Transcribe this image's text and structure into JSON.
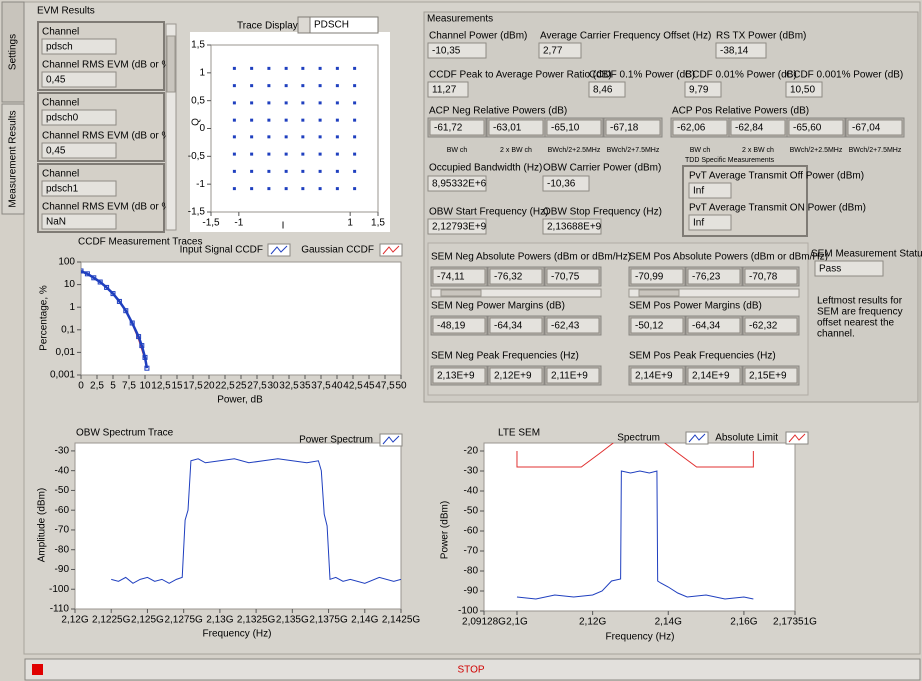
{
  "tabs": [
    "Settings",
    "Measurement Results"
  ],
  "evm": {
    "title": "EVM Results",
    "items": [
      {
        "channel_label": "Channel",
        "channel": "pdsch",
        "evm_label": "Channel RMS EVM (dB or %)",
        "evm": "0,45"
      },
      {
        "channel_label": "Channel",
        "channel": "pdsch0",
        "evm_label": "Channel RMS EVM (dB or %)",
        "evm": "0,45"
      },
      {
        "channel_label": "Channel",
        "channel": "pdsch1",
        "evm_label": "Channel RMS EVM (dB or %)",
        "evm": "NaN"
      }
    ]
  },
  "measurements": {
    "title": "Measurements",
    "fields": [
      {
        "label": "Channel Power (dBm)",
        "value": "-10,35"
      },
      {
        "label": "Average Carrier Frequency Offset (Hz)",
        "value": "2,77"
      },
      {
        "label": "RS TX Power (dBm)",
        "value": "-38,14"
      },
      {
        "label": "CCDF Peak to Average Power Ratio (dB)",
        "value": "11,27"
      },
      {
        "label": "CCDF 0.1% Power (dB)",
        "value": "8,46"
      },
      {
        "label": "CCDF 0.01% Power (dB)",
        "value": "9,79"
      },
      {
        "label": "CCDF 0.001% Power (dB)",
        "value": "10,50"
      },
      {
        "label": "Occupied Bandwidth (Hz)",
        "value": "8,95332E+6"
      },
      {
        "label": "OBW Carrier Power (dBm)",
        "value": "-10,36"
      },
      {
        "label": "OBW Start Frequency (Hz)",
        "value": "2,12793E+9"
      },
      {
        "label": "OBW Stop Frequency (Hz)",
        "value": "2,13688E+9"
      }
    ],
    "acp_neg": {
      "label": "ACP Neg Relative Powers (dB)",
      "values": [
        "-61,72",
        "-63,01",
        "-65,10",
        "-67,18"
      ],
      "sublabels": [
        "BW ch",
        "2 x BW ch",
        "BWch/2+2.5MHz",
        "BWch/2+7.5MHz"
      ]
    },
    "acp_pos": {
      "label": "ACP Pos Relative Powers (dB)",
      "values": [
        "-62,06",
        "-62,84",
        "-65,60",
        "-67,04"
      ],
      "sublabels": [
        "BW ch",
        "2 x BW ch",
        "BWch/2+2.5MHz",
        "BWch/2+7.5MHz"
      ]
    },
    "tdd": {
      "title": "TDD Specific Measurements",
      "fields": [
        {
          "label": "PvT Average Transmit Off Power (dBm)",
          "value": "Inf"
        },
        {
          "label": "PvT Average Transmit ON Power (dBm)",
          "value": "Inf"
        }
      ]
    },
    "sem_arrays": [
      {
        "label": "SEM Neg Absolute Powers (dBm or dBm/Hz)",
        "values": [
          "-74,11",
          "-76,32",
          "-70,75"
        ]
      },
      {
        "label": "SEM Pos Absolute Powers (dBm or dBm/Hz)",
        "values": [
          "-70,99",
          "-76,23",
          "-70,78"
        ]
      },
      {
        "label": "SEM Neg Power Margins (dB)",
        "values": [
          "-48,19",
          "-64,34",
          "-62,43"
        ]
      },
      {
        "label": "SEM Pos Power Margins (dB)",
        "values": [
          "-50,12",
          "-64,34",
          "-62,32"
        ]
      },
      {
        "label": "SEM Neg Peak Frequencies (Hz)",
        "values": [
          "2,13E+9",
          "2,12E+9",
          "2,11E+9"
        ]
      },
      {
        "label": "SEM Pos Peak Frequencies (Hz)",
        "values": [
          "2,14E+9",
          "2,14E+9",
          "2,15E+9"
        ]
      }
    ],
    "sem_status": {
      "label": "SEM Measurement Status",
      "value": "Pass"
    },
    "sem_note": [
      "Leftmost results for",
      "SEM are frequency",
      "offset nearest the",
      "channel."
    ]
  },
  "stop_button": "STOP",
  "chart_data": [
    {
      "type": "scatter",
      "selector_label": "Trace Display",
      "selector_value": "PDSCH",
      "xlabel": "I",
      "ylabel": "Q",
      "xlim": [
        -1.5,
        1.5
      ],
      "ylim": [
        -1.5,
        1.5
      ],
      "grid": false,
      "color": "#1f3fbf",
      "xticks": [
        {
          "value": -1.5,
          "label": "-1,5"
        },
        -1,
        1,
        {
          "value": 1.5,
          "label": "1,5"
        }
      ],
      "yticks": [
        {
          "value": 1.5,
          "label": "1,5"
        },
        1,
        {
          "value": 0.5,
          "label": "0,5"
        },
        0,
        {
          "value": -0.5,
          "label": "-0,5"
        },
        -1,
        {
          "value": -1.5,
          "label": "-1,5"
        }
      ],
      "x": [
        -1.08,
        -0.77,
        -0.46,
        -0.15,
        0.15,
        0.46,
        0.77,
        1.08,
        -1.08,
        -0.77,
        -0.46,
        -0.15,
        0.15,
        0.46,
        0.77,
        1.08,
        -1.08,
        -0.77,
        -0.46,
        -0.15,
        0.15,
        0.46,
        0.77,
        1.08,
        -1.08,
        -0.77,
        -0.46,
        -0.15,
        0.15,
        0.46,
        0.77,
        1.08,
        -1.08,
        -0.77,
        -0.46,
        -0.15,
        0.15,
        0.46,
        0.77,
        1.08,
        -1.08,
        -0.77,
        -0.46,
        -0.15,
        0.15,
        0.46,
        0.77,
        1.08,
        -1.08,
        -0.77,
        -0.46,
        -0.15,
        0.15,
        0.46,
        0.77,
        1.08,
        -1.08,
        -0.77,
        -0.46,
        -0.15,
        0.15,
        0.46,
        0.77,
        1.08
      ],
      "values": [
        1.08,
        1.08,
        1.08,
        1.08,
        1.08,
        1.08,
        1.08,
        1.08,
        0.77,
        0.77,
        0.77,
        0.77,
        0.77,
        0.77,
        0.77,
        0.77,
        0.46,
        0.46,
        0.46,
        0.46,
        0.46,
        0.46,
        0.46,
        0.46,
        0.15,
        0.15,
        0.15,
        0.15,
        0.15,
        0.15,
        0.15,
        0.15,
        -0.15,
        -0.15,
        -0.15,
        -0.15,
        -0.15,
        -0.15,
        -0.15,
        -0.15,
        -0.46,
        -0.46,
        -0.46,
        -0.46,
        -0.46,
        -0.46,
        -0.46,
        -0.46,
        -0.77,
        -0.77,
        -0.77,
        -0.77,
        -0.77,
        -0.77,
        -0.77,
        -0.77,
        -1.08,
        -1.08,
        -1.08,
        -1.08,
        -1.08,
        -1.08,
        -1.08,
        -1.08
      ]
    },
    {
      "type": "line",
      "title": "CCDF Measurement Traces",
      "xlabel": "Power, dB",
      "ylabel": "Percentage, %",
      "log_y": true,
      "grid": false,
      "xlim": [
        0,
        50
      ],
      "ylim": [
        0.001,
        100
      ],
      "xticks": [
        0,
        {
          "value": 2.5,
          "label": "2,5"
        },
        5,
        {
          "value": 7.5,
          "label": "7,5"
        },
        10,
        {
          "value": 12.5,
          "label": "12,5"
        },
        15,
        {
          "value": 17.5,
          "label": "17,5"
        },
        20,
        {
          "value": 22.5,
          "label": "22,5"
        },
        25,
        {
          "value": 27.5,
          "label": "27,5"
        },
        30,
        {
          "value": 32.5,
          "label": "32,5"
        },
        35,
        {
          "value": 37.5,
          "label": "37,5"
        },
        40,
        {
          "value": 42.5,
          "label": "42,5"
        },
        45,
        {
          "value": 47.5,
          "label": "47,5"
        },
        50
      ],
      "yticks": [
        100,
        10,
        1,
        {
          "value": 0.1,
          "label": "0,1"
        },
        {
          "value": 0.01,
          "label": "0,01"
        },
        {
          "value": 0.001,
          "label": "0,001"
        }
      ],
      "series": [
        {
          "name": "Gaussian CCDF",
          "color": "#e03030",
          "x": [
            0,
            1,
            2,
            3,
            4,
            5,
            6,
            7,
            8,
            9,
            9.5,
            10,
            10.3
          ],
          "values": [
            36.8,
            28.4,
            20.5,
            13.5,
            8.1,
            4.2,
            1.87,
            0.67,
            0.18,
            0.036,
            0.013,
            0.0045,
            0.0022
          ]
        },
        {
          "name": "Input Signal CCDF",
          "color": "#1f3fbf",
          "marker": "square",
          "x": [
            0,
            1,
            2,
            3,
            4,
            5,
            6,
            7,
            8,
            9,
            9.5,
            10,
            10.3
          ],
          "values": [
            40,
            30,
            20,
            13,
            7.5,
            4,
            1.8,
            0.7,
            0.2,
            0.05,
            0.02,
            0.006,
            0.002
          ]
        }
      ]
    },
    {
      "type": "line",
      "title": "OBW Spectrum Trace",
      "xlabel": "Frequency (Hz)",
      "ylabel": "Amplitude (dBm)",
      "grid": false,
      "xlim": [
        2120000000,
        2142500000
      ],
      "ylim": [
        -110,
        -26
      ],
      "xticks": [
        {
          "value": 2120000000,
          "label": "2,12G"
        },
        {
          "value": 2122500000,
          "label": "2,1225G"
        },
        {
          "value": 2125000000,
          "label": "2,125G"
        },
        {
          "value": 2127500000,
          "label": "2,1275G"
        },
        {
          "value": 2130000000,
          "label": "2,13G"
        },
        {
          "value": 2132500000,
          "label": "2,1325G"
        },
        {
          "value": 2135000000,
          "label": "2,135G"
        },
        {
          "value": 2137500000,
          "label": "2,1375G"
        },
        {
          "value": 2140000000,
          "label": "2,14G"
        },
        {
          "value": 2142500000,
          "label": "2,1425G"
        }
      ],
      "yticks": [
        -30,
        -40,
        -50,
        -60,
        -70,
        -80,
        -90,
        -100,
        -110
      ],
      "series": [
        {
          "name": "Power Spectrum",
          "color": "#1f3fbf",
          "x": [
            2122500000,
            2123000000,
            2123500000,
            2124000000,
            2124500000,
            2125000000,
            2125500000,
            2126000000,
            2126500000,
            2127000000,
            2127400000,
            2127600000,
            2127800000,
            2128000000,
            2128500000,
            2129000000,
            2130000000,
            2131000000,
            2132000000,
            2133000000,
            2134000000,
            2135000000,
            2136000000,
            2136800000,
            2137000000,
            2137200000,
            2137400000,
            2137600000,
            2138000000,
            2138500000,
            2139000000,
            2140000000,
            2141000000,
            2142000000,
            2142500000
          ],
          "values": [
            -95,
            -96,
            -94,
            -97,
            -95,
            -94,
            -96,
            -95,
            -97,
            -95,
            -94,
            -65,
            -60,
            -35,
            -34,
            -36,
            -35,
            -34,
            -36,
            -35,
            -34,
            -35,
            -36,
            -35,
            -40,
            -62,
            -68,
            -95,
            -94,
            -96,
            -95,
            -97,
            -94,
            -96,
            -95
          ]
        }
      ]
    },
    {
      "type": "line",
      "title": "LTE SEM",
      "xlabel": "Frequency (Hz)",
      "ylabel": "Power (dBm)",
      "grid": false,
      "xlim": [
        2091280000,
        2173510000
      ],
      "ylim": [
        -100,
        -16
      ],
      "xticks": [
        {
          "value": 2091280000,
          "label": "2,09128G"
        },
        {
          "value": 2100000000,
          "label": "2,1G"
        },
        {
          "value": 2120000000,
          "label": "2,12G"
        },
        {
          "value": 2140000000,
          "label": "2,14G"
        },
        {
          "value": 2160000000,
          "label": "2,16G"
        },
        {
          "value": 2173510000,
          "label": "2,17351G"
        }
      ],
      "yticks": [
        -20,
        -30,
        -40,
        -50,
        -60,
        -70,
        -80,
        -90,
        -100
      ],
      "series": [
        {
          "name": "Spectrum",
          "color": "#1f3fbf",
          "x": [
            2100000000,
            2105000000,
            2110000000,
            2115000000,
            2120000000,
            2122500000,
            2125000000,
            2127400000,
            2127600000,
            2130000000,
            2132500000,
            2135000000,
            2137000000,
            2137200000,
            2138000000,
            2140000000,
            2142500000,
            2145000000,
            2150000000,
            2155000000,
            2160000000,
            2162500000
          ],
          "values": [
            -93,
            -94,
            -92,
            -93,
            -92,
            -90,
            -85,
            -84,
            -30,
            -31,
            -30,
            -31,
            -30,
            -85,
            -86,
            -88,
            -91,
            -93,
            -92,
            -94,
            -93,
            -94
          ]
        },
        {
          "name": "Absolute Limit",
          "color": "#e03030",
          "x": [
            2100000000,
            2100000000,
            2117000000,
            2122000000,
            2127500000,
            2137000000,
            2142500000,
            2147500000,
            2162500000,
            2162500000
          ],
          "values": [
            -20,
            -28,
            -28,
            -21,
            -13,
            -13,
            -21,
            -28,
            -28,
            -20
          ]
        }
      ]
    }
  ]
}
